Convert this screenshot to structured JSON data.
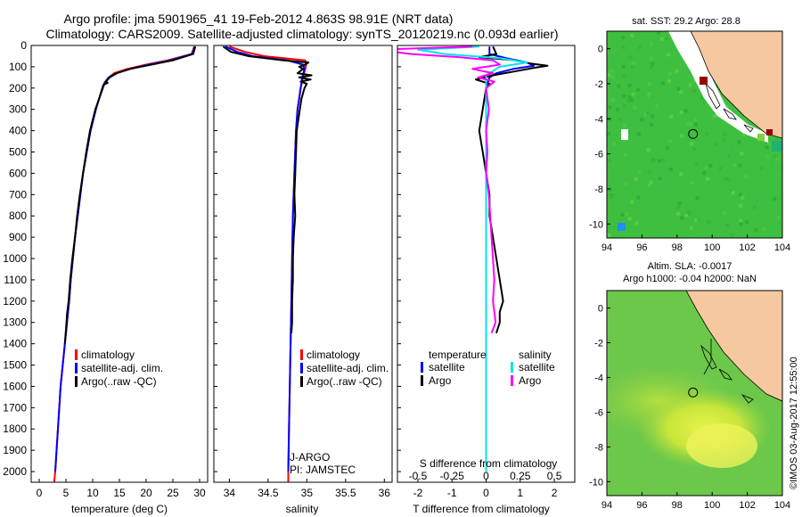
{
  "header": {
    "line1": "Argo profile: jma 5901965_41 19-Feb-2012 4.863S 98.91E (NRT data)",
    "line2": "Climatology: CARS2009. Satellite-adjusted climatology: synTS_20120219.nc (0.093d earlier)"
  },
  "colors": {
    "climatology": "#ff0000",
    "satellite": "#0000ff",
    "argo": "#000000",
    "satellite_salinity": "#00e5ee",
    "argo_salinity": "#ff00ff",
    "land": "#f5c8a0",
    "no_data": "#ffffff"
  },
  "chart_data": [
    {
      "type": "line",
      "id": "temperature",
      "xlabel": "temperature (deg C)",
      "ylabel": "",
      "xlim": [
        -1.5,
        31.5
      ],
      "ylim": [
        2050,
        0
      ],
      "x_ticks": [
        0,
        5,
        10,
        15,
        20,
        25,
        30
      ],
      "x_tick_labels": [
        "0",
        "5",
        "10",
        "15",
        "20",
        "25",
        "30"
      ],
      "y_ticks": [
        0,
        100,
        200,
        300,
        400,
        500,
        600,
        700,
        800,
        900,
        1000,
        1100,
        1200,
        1300,
        1400,
        1500,
        1600,
        1700,
        1800,
        1900,
        2000
      ],
      "y_tick_labels": [
        "0",
        "100",
        "200",
        "300",
        "400",
        "500",
        "600",
        "700",
        "800",
        "900",
        "1000",
        "1100",
        "1200",
        "1300",
        "1400",
        "1500",
        "1600",
        "1700",
        "1800",
        "1900",
        "2000"
      ],
      "legend": {
        "position": "bottom-right",
        "entries": [
          "climatology",
          "satellite-adj. clim.",
          "Argo(..raw -QC)"
        ]
      },
      "series": [
        {
          "name": "climatology",
          "color_key": "climatology",
          "depth": [
            5,
            40,
            70,
            90,
            110,
            130,
            150,
            175,
            200,
            250,
            300,
            400,
            500,
            600,
            700,
            800,
            900,
            1000,
            1100,
            1200,
            1300,
            1400,
            1600,
            1800,
            2000,
            2050
          ],
          "values": [
            29.0,
            28.5,
            24.0,
            20.0,
            16.5,
            14.0,
            13.0,
            12.2,
            11.9,
            11.2,
            10.6,
            9.6,
            8.9,
            8.2,
            7.7,
            7.2,
            6.7,
            6.3,
            5.9,
            5.6,
            5.2,
            4.8,
            4.0,
            3.5,
            3.0,
            2.8
          ]
        },
        {
          "name": "satellite-adj. clim.",
          "color_key": "satellite",
          "depth": [
            5,
            40,
            70,
            90,
            110,
            130,
            150,
            175,
            200,
            250,
            300,
            400,
            500,
            600,
            700,
            800,
            900,
            1000,
            1100,
            1200,
            1300,
            1400,
            1600,
            1800,
            2000
          ],
          "values": [
            29.1,
            28.6,
            24.5,
            20.5,
            17.0,
            14.5,
            13.2,
            12.3,
            11.9,
            11.2,
            10.6,
            9.6,
            8.9,
            8.2,
            7.7,
            7.2,
            6.7,
            6.3,
            5.9,
            5.6,
            5.2,
            4.8,
            4.0,
            3.5,
            3.0
          ]
        },
        {
          "name": "Argo(..raw -QC)",
          "color_key": "argo",
          "depth": [
            5,
            40,
            70,
            90,
            110,
            130,
            150,
            170,
            175,
            185,
            200,
            250,
            300,
            400,
            500,
            600,
            700,
            800,
            900,
            1000,
            1100,
            1200,
            1260,
            1300,
            1400
          ],
          "values": [
            29.2,
            28.8,
            25.0,
            21.0,
            17.0,
            14.5,
            13.0,
            12.4,
            12.8,
            12.0,
            11.8,
            11.2,
            10.5,
            9.5,
            8.8,
            8.2,
            7.6,
            7.1,
            6.7,
            6.2,
            5.8,
            5.5,
            5.2,
            5.1,
            4.8
          ]
        }
      ]
    },
    {
      "type": "line",
      "id": "salinity",
      "xlabel": "salinity",
      "xlim": [
        33.8,
        36.1
      ],
      "ylim": [
        2050,
        0
      ],
      "x_ticks": [
        34,
        34.5,
        35,
        35.5,
        36
      ],
      "x_tick_labels": [
        "34",
        "34.5",
        "35",
        "35.5",
        "36"
      ],
      "legend": {
        "position": "bottom-right",
        "entries": [
          "climatology",
          "satellite-adj. clim.",
          "Argo(..raw -QC)"
        ]
      },
      "annotations": [
        "J-ARGO",
        "PI: JAMSTEC"
      ],
      "series": [
        {
          "name": "climatology",
          "color_key": "climatology",
          "depth": [
            5,
            30,
            50,
            70,
            90,
            110,
            150,
            200,
            250,
            300,
            400,
            500,
            600,
            800,
            1000,
            1200,
            1400,
            1600,
            1800,
            2000,
            2050
          ],
          "values": [
            34.0,
            34.2,
            34.45,
            34.98,
            34.99,
            34.98,
            34.95,
            34.92,
            34.9,
            34.88,
            34.86,
            34.85,
            34.84,
            34.82,
            34.81,
            34.8,
            34.79,
            34.78,
            34.77,
            34.76,
            34.76
          ]
        },
        {
          "name": "satellite-adj. clim.",
          "color_key": "satellite",
          "depth": [
            5,
            30,
            50,
            70,
            90,
            110,
            150,
            200,
            250,
            300,
            400,
            500,
            600,
            800,
            1000,
            1200,
            1400,
            1600,
            1800,
            2000
          ],
          "values": [
            33.95,
            34.1,
            34.3,
            34.75,
            34.95,
            34.97,
            34.94,
            34.92,
            34.9,
            34.88,
            34.86,
            34.85,
            34.84,
            34.82,
            34.81,
            34.8,
            34.79,
            34.78,
            34.77,
            34.76
          ]
        },
        {
          "name": "Argo(..raw -QC)",
          "color_key": "argo",
          "depth": [
            5,
            30,
            50,
            70,
            80,
            90,
            100,
            110,
            130,
            140,
            150,
            160,
            170,
            180,
            200,
            250,
            300,
            400,
            500,
            600,
            700,
            800,
            900,
            1000,
            1100,
            1200,
            1300,
            1350
          ],
          "values": [
            33.92,
            34.02,
            34.25,
            34.7,
            35.02,
            34.98,
            34.9,
            34.95,
            34.88,
            35.06,
            34.9,
            35.05,
            34.92,
            35.0,
            34.97,
            34.93,
            34.91,
            34.87,
            34.86,
            34.85,
            34.84,
            34.85,
            34.83,
            34.82,
            34.82,
            34.81,
            34.81,
            34.8
          ]
        }
      ]
    },
    {
      "type": "line",
      "id": "differences",
      "xlabel_top": "S difference from climatology",
      "xlabel_bottom": "T difference from climatology",
      "xlim": [
        -2.6,
        2.6
      ],
      "ylim": [
        2050,
        0
      ],
      "x_ticks": [
        -2,
        -1,
        0,
        1,
        2
      ],
      "x_tick_labels": [
        "-2",
        "-1",
        "0",
        "1",
        "2"
      ],
      "s_ticks": [
        -0.5,
        -0.25,
        0,
        0.25,
        0.5
      ],
      "s_tick_labels": [
        "-0.5",
        "-0.25",
        "0",
        "0.25",
        "0.5"
      ],
      "legend": {
        "position": "bottom-right",
        "headers": [
          "temperature",
          "salinity"
        ],
        "entries": [
          "satellite",
          "Argo",
          "satellite",
          "Argo"
        ]
      },
      "series": [
        {
          "name": "T satellite",
          "color_key": "satellite",
          "depth": [
            5,
            40,
            60,
            80,
            95,
            110,
            130,
            150,
            200,
            300,
            500,
            800,
            1200,
            1600,
            2000
          ],
          "values": [
            0.1,
            0.1,
            0.6,
            1.2,
            1.4,
            0.8,
            0.3,
            0.1,
            0.0,
            0.0,
            0.0,
            0.0,
            0.0,
            0.0,
            0.0
          ]
        },
        {
          "name": "T Argo",
          "color_key": "argo",
          "depth": [
            5,
            40,
            55,
            70,
            85,
            95,
            105,
            120,
            140,
            160,
            180,
            200,
            300,
            400,
            500,
            600,
            700,
            800,
            900,
            1000,
            1100,
            1200,
            1250,
            1300,
            1350
          ],
          "values": [
            0.2,
            0.3,
            -0.2,
            0.9,
            1.3,
            1.8,
            1.4,
            0.9,
            0.2,
            -0.3,
            0.1,
            0.0,
            -0.1,
            -0.2,
            -0.1,
            0.0,
            0.1,
            0.1,
            0.2,
            0.3,
            0.4,
            0.5,
            0.4,
            0.4,
            0.3
          ]
        },
        {
          "name": "S satellite",
          "color_key": "satellite_salinity",
          "depth": [
            5,
            20,
            40,
            60,
            80,
            100,
            140,
            200,
            400,
            800,
            1200,
            1600,
            2000
          ],
          "values": [
            -0.05,
            -0.5,
            -0.3,
            0.1,
            0.3,
            0.1,
            0.0,
            0.0,
            0.0,
            0.0,
            0.0,
            0.0,
            0.0
          ]
        },
        {
          "name": "S Argo",
          "color_key": "argo_salinity",
          "depth": [
            5,
            20,
            40,
            55,
            70,
            90,
            110,
            130,
            150,
            170,
            200,
            300,
            400,
            500,
            600,
            700,
            800,
            900,
            1000,
            1100,
            1200,
            1300,
            1350
          ],
          "values": [
            -0.1,
            -0.8,
            -0.55,
            -0.2,
            0.05,
            0.1,
            -0.1,
            0.05,
            -0.06,
            0.06,
            0.0,
            0.02,
            0.0,
            0.01,
            0.0,
            0.02,
            0.03,
            0.04,
            0.05,
            0.06,
            0.05,
            0.07,
            0.04
          ]
        }
      ]
    },
    {
      "type": "heatmap",
      "id": "sst_map",
      "title": "sat. SST: 29.2 Argo: 28.8",
      "x_ticks": [
        94,
        96,
        98,
        100,
        102,
        104
      ],
      "y_ticks": [
        0,
        -2,
        -4,
        -6,
        -8,
        -10
      ],
      "xlim": [
        94,
        104
      ],
      "ylim": [
        -10.8,
        1.0
      ],
      "argo_position": {
        "lon": 98.91,
        "lat": -4.863
      }
    },
    {
      "type": "heatmap",
      "id": "sla_map",
      "title": "Altim. SLA: -0.0017",
      "subtitle": "Argo h1000: -0.04 h2000: NaN",
      "x_ticks": [
        94,
        96,
        98,
        100,
        102,
        104
      ],
      "y_ticks": [
        0,
        -2,
        -4,
        -6,
        -8,
        -10
      ],
      "xlim": [
        94,
        104
      ],
      "ylim": [
        -10.8,
        1.0
      ],
      "argo_position": {
        "lon": 98.91,
        "lat": -4.863
      }
    }
  ],
  "footer": {
    "credit": "©IMOS 03-Aug-2017 12:55:00"
  }
}
